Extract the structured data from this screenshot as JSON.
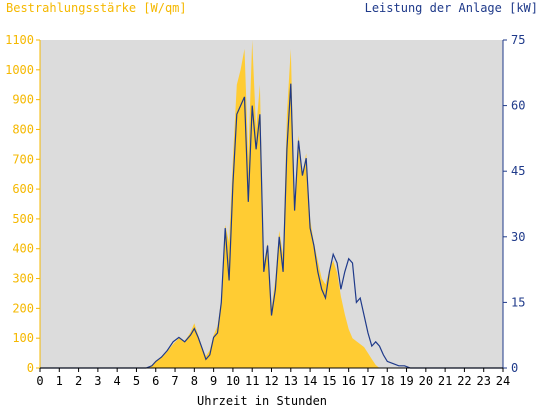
{
  "chart_data": {
    "type": "area",
    "title_left": "Bestrahlungsstärke [W/qm]",
    "title_right": "Leistung der Anlage [kW]",
    "xlabel": "Uhrzeit in Stunden",
    "x_ticks": [
      "0",
      "1",
      "2",
      "3",
      "4",
      "5",
      "6",
      "7",
      "8",
      "9",
      "10",
      "11",
      "12",
      "13",
      "14",
      "15",
      "16",
      "17",
      "18",
      "19",
      "20",
      "21",
      "22",
      "23",
      "24"
    ],
    "y_left_ticks": [
      "0",
      "100",
      "200",
      "300",
      "400",
      "500",
      "600",
      "700",
      "800",
      "900",
      "1000",
      "1100"
    ],
    "y_right_ticks": [
      "0",
      "15",
      "30",
      "45",
      "60",
      "75"
    ],
    "xlim": [
      0,
      24
    ],
    "ylim_left": [
      0,
      1100
    ],
    "ylim_right": [
      0,
      75
    ],
    "grid": false,
    "colors": {
      "plot_background": "#dcdcdc",
      "irradiance": "#ffcc33",
      "power": "#1f3a8a",
      "left_axis_text": "#f5b800",
      "right_axis_text": "#1f3a8a"
    },
    "series": [
      {
        "name": "Bestrahlungsstärke [W/qm]",
        "axis": "left",
        "x": [
          0,
          5.5,
          5.8,
          6.0,
          6.3,
          6.6,
          6.9,
          7.2,
          7.5,
          7.8,
          8.0,
          8.2,
          8.4,
          8.6,
          8.8,
          9.0,
          9.2,
          9.4,
          9.6,
          9.8,
          10.0,
          10.2,
          10.4,
          10.6,
          10.8,
          11.0,
          11.2,
          11.4,
          11.6,
          11.8,
          12.0,
          12.2,
          12.4,
          12.6,
          12.8,
          13.0,
          13.2,
          13.4,
          13.6,
          13.8,
          14.0,
          14.2,
          14.4,
          14.6,
          14.8,
          15.0,
          15.2,
          15.4,
          15.6,
          15.8,
          16.0,
          16.2,
          16.4,
          16.6,
          16.8,
          17.0,
          17.2,
          17.4,
          17.6,
          17.8,
          18.0,
          18.3,
          18.6,
          18.9,
          19.2,
          19.5,
          19.8,
          20.0,
          24
        ],
        "values": [
          0,
          0,
          10,
          25,
          35,
          55,
          80,
          100,
          90,
          120,
          150,
          110,
          70,
          40,
          60,
          110,
          140,
          230,
          480,
          420,
          700,
          950,
          1000,
          1070,
          700,
          1100,
          800,
          950,
          350,
          420,
          200,
          300,
          460,
          380,
          850,
          1070,
          550,
          780,
          650,
          720,
          500,
          420,
          360,
          300,
          280,
          330,
          360,
          320,
          240,
          180,
          130,
          100,
          90,
          80,
          70,
          50,
          30,
          10,
          0,
          0,
          0,
          0,
          0,
          0,
          0,
          0,
          0,
          0,
          0
        ]
      },
      {
        "name": "Leistung der Anlage [kW]",
        "axis": "right",
        "x": [
          0,
          5.5,
          5.8,
          6.0,
          6.3,
          6.6,
          6.9,
          7.2,
          7.5,
          7.8,
          8.0,
          8.2,
          8.4,
          8.6,
          8.8,
          9.0,
          9.2,
          9.4,
          9.6,
          9.8,
          10.0,
          10.2,
          10.4,
          10.6,
          10.8,
          11.0,
          11.2,
          11.4,
          11.6,
          11.8,
          12.0,
          12.2,
          12.4,
          12.6,
          12.8,
          13.0,
          13.2,
          13.4,
          13.6,
          13.8,
          14.0,
          14.2,
          14.4,
          14.6,
          14.8,
          15.0,
          15.2,
          15.4,
          15.6,
          15.8,
          16.0,
          16.2,
          16.4,
          16.6,
          16.8,
          17.0,
          17.2,
          17.4,
          17.6,
          17.8,
          18.0,
          18.3,
          18.6,
          18.9,
          19.2,
          19.5,
          19.8,
          20.0,
          24
        ],
        "values": [
          0,
          0,
          0.5,
          1.5,
          2.5,
          4,
          6,
          7,
          6,
          7.5,
          9,
          7,
          4.5,
          2,
          3,
          7,
          8,
          15,
          32,
          20,
          42,
          58,
          60,
          62,
          38,
          60,
          50,
          58,
          22,
          28,
          12,
          18,
          30,
          22,
          50,
          65,
          36,
          52,
          44,
          48,
          32,
          28,
          22,
          18,
          16,
          22,
          26,
          24,
          18,
          22,
          25,
          24,
          15,
          16,
          12,
          8,
          5,
          6,
          5,
          3,
          1.5,
          1,
          0.5,
          0.5,
          0,
          0,
          0,
          0,
          0
        ]
      }
    ]
  }
}
